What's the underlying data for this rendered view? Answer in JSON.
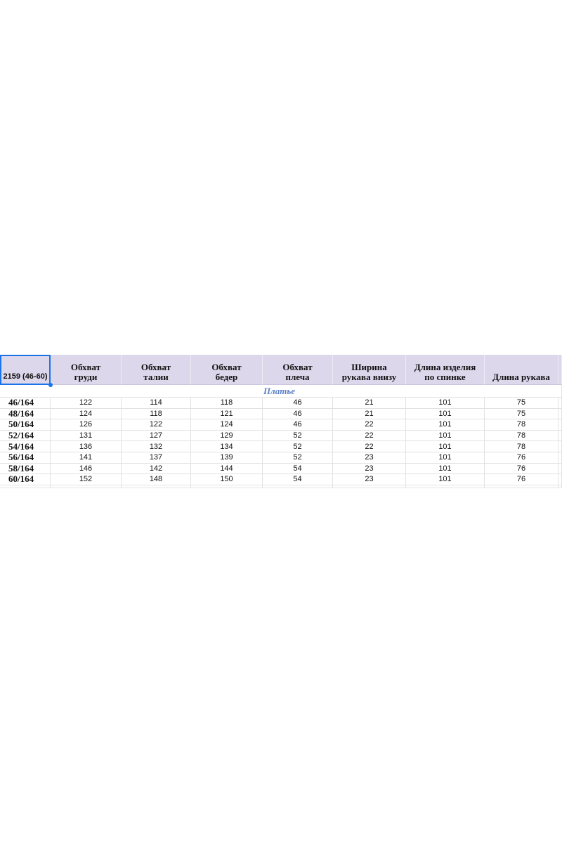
{
  "sheet": {
    "header": [
      "2159 (46-60)",
      "Обхват\nгруди",
      "Обхват\nталии",
      "Обхват\nбедер",
      "Обхват\nплеча",
      "Ширина\nрукава внизу",
      "Длина изделия\nпо спинке",
      "Длина рукава"
    ],
    "section": "Платье",
    "rows": [
      [
        "46/164",
        122,
        114,
        118,
        46,
        21,
        101,
        75
      ],
      [
        "48/164",
        124,
        118,
        121,
        46,
        21,
        101,
        75
      ],
      [
        "50/164",
        126,
        122,
        124,
        46,
        22,
        101,
        78
      ],
      [
        "52/164",
        131,
        127,
        129,
        52,
        22,
        101,
        78
      ],
      [
        "54/164",
        136,
        132,
        134,
        52,
        22,
        101,
        78
      ],
      [
        "56/164",
        141,
        137,
        139,
        52,
        23,
        101,
        76
      ],
      [
        "58/164",
        146,
        142,
        144,
        54,
        23,
        101,
        76
      ],
      [
        "60/164",
        152,
        148,
        150,
        54,
        23,
        101,
        76
      ]
    ]
  }
}
